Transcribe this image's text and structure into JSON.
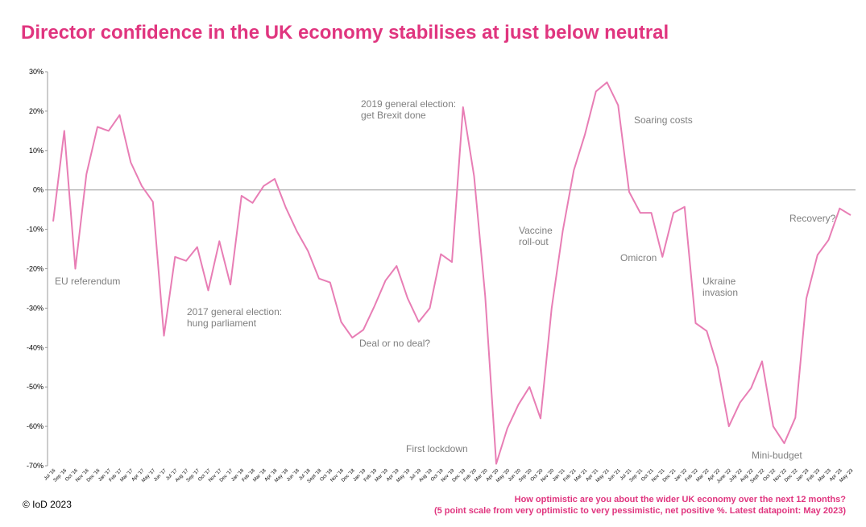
{
  "chart_data": {
    "type": "line",
    "title": "Director confidence in the UK economy stabilises at just below neutral",
    "categories": [
      "Jul '16",
      "Sep '16",
      "Oct '16",
      "Nov '16",
      "Dec '16",
      "Jan '17",
      "Feb '17",
      "Mar '17",
      "Apr '17",
      "May '17",
      "Jun '17",
      "Jul '17",
      "Aug '17",
      "Sep '17",
      "Oct '17",
      "Nov '17",
      "Dec '17",
      "Jan '18",
      "Feb '18",
      "Mar '18",
      "Apr '18",
      "May '18",
      "Jun '18",
      "Jul '18",
      "Sept '18",
      "Oct '18",
      "Nov '18",
      "Dec '18",
      "Jan '19",
      "Feb '19",
      "Mar '19",
      "Apr '19",
      "May '19",
      "Jul '19",
      "Aug '19",
      "Oct '19",
      "Nov '19",
      "Dec '19",
      "Feb '20",
      "Mar '20",
      "Apr '20",
      "May '20",
      "Jun '20",
      "Sep '20",
      "Oct '20",
      "Nov '20",
      "Jan '21",
      "Feb '21",
      "Mar '21",
      "Apr '21",
      "May '21",
      "Jun '21",
      "Jul '21",
      "Sep '21",
      "Oct '21",
      "Nov '21",
      "Dec '21",
      "Jan '22",
      "Feb '22",
      "Mar '22",
      "Apr '22",
      "June '22",
      "July '22",
      "Aug '22",
      "Sept '22",
      "Oct '22",
      "Nov '22",
      "Dec '22",
      "Jan '23",
      "Feb '23",
      "Mar '23",
      "Apr '23",
      "May '23"
    ],
    "series": [
      {
        "color": "#e87eb5",
        "values": [
          -8,
          15,
          -20,
          4,
          16,
          15,
          19,
          7,
          1,
          -3,
          -37,
          -17,
          -18,
          -14.5,
          -25.5,
          -13,
          -24,
          -1.5,
          -3.3,
          1,
          2.8,
          -4.5,
          -10.5,
          -15.5,
          -22.5,
          -23.5,
          -33.5,
          -37.5,
          -35.5,
          -29.5,
          -23,
          -19.3,
          -27.5,
          -33.5,
          -30,
          -16.3,
          -18.3,
          21,
          3.5,
          -27,
          -69.5,
          -60.5,
          -54.5,
          -50,
          -58,
          -30,
          -10.5,
          5,
          14,
          25,
          27.3,
          21.5,
          -0.5,
          -5.8,
          -5.8,
          -17,
          -5.8,
          -4.3,
          -33.8,
          -35.8,
          -45,
          -60,
          -54,
          -50.3,
          -43.5,
          -60,
          -64.3,
          -57.8,
          -27.5,
          -16.5,
          -12.7,
          -4.7,
          -6.4
        ]
      }
    ],
    "ylim": [
      -70,
      30
    ],
    "yticks": [
      {
        "value": -70,
        "label": "-70%"
      },
      {
        "value": -60,
        "label": "-60%"
      },
      {
        "value": -50,
        "label": "-50%"
      },
      {
        "value": -40,
        "label": "-40%"
      },
      {
        "value": -30,
        "label": "-30%"
      },
      {
        "value": -20,
        "label": "-20%"
      },
      {
        "value": -10,
        "label": "-10%"
      },
      {
        "value": 0,
        "label": "0%"
      },
      {
        "value": 10,
        "label": "10%"
      },
      {
        "value": 20,
        "label": "20%"
      },
      {
        "value": 30,
        "label": "30%"
      }
    ],
    "grid": false,
    "annotations": [
      [
        "EU referendum"
      ],
      [
        "2017 general election:",
        "hung parliament"
      ],
      [
        "2019 general election:",
        "get Brexit done"
      ],
      [
        "Deal or no deal?"
      ],
      [
        "First lockdown"
      ],
      [
        "Vaccine",
        "roll-out"
      ],
      [
        "Soaring costs"
      ],
      [
        "Omicron"
      ],
      [
        "Ukraine",
        "invasion"
      ],
      [
        "Mini-budget"
      ],
      [
        "Recovery?"
      ]
    ],
    "source": "© IoD 2023",
    "note": [
      "How optimistic are you about the wider UK economy over the next 12 months?",
      "(5 point scale from very optimistic to very pessimistic, net positive %. Latest datapoint: May 2023)"
    ]
  }
}
